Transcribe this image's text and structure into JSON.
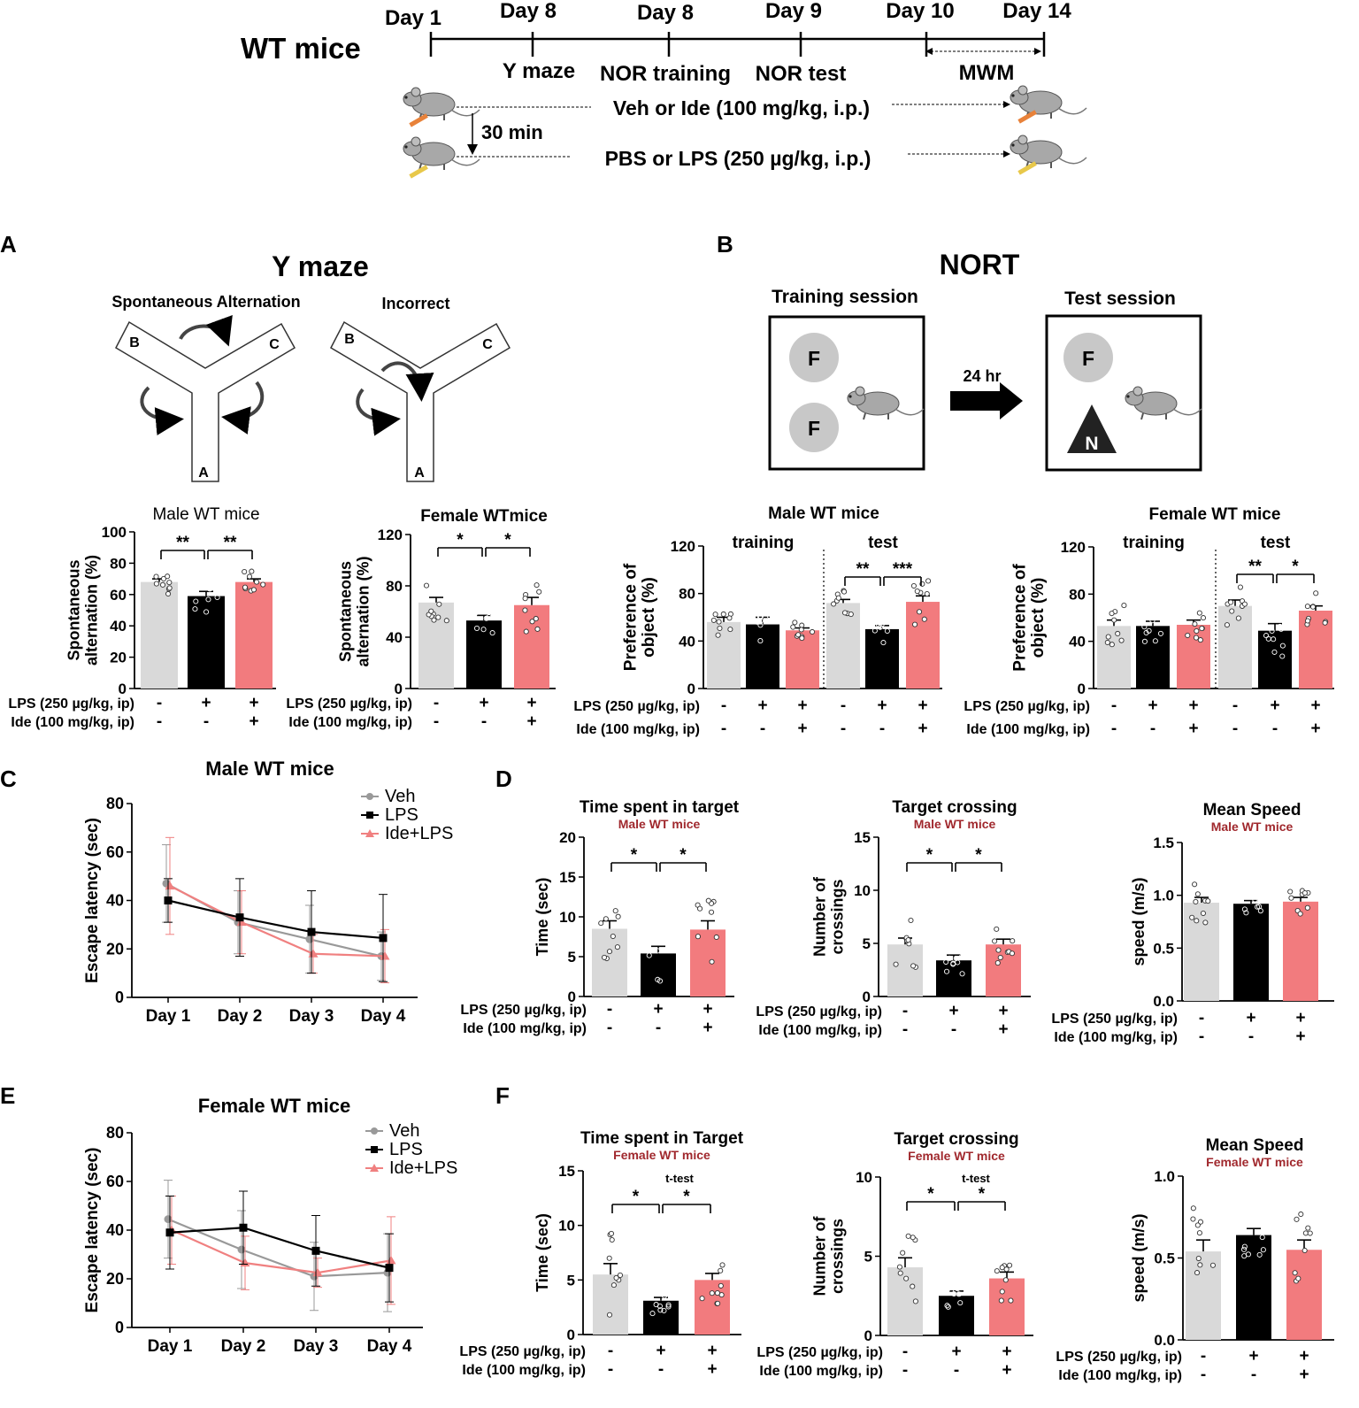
{
  "header": {
    "title": "WT mice",
    "days": [
      "Day 1",
      "Day 8",
      "Day 8",
      "Day 9",
      "Day 10",
      "Day 14"
    ],
    "tests": [
      "Y maze",
      "NOR training",
      "NOR test",
      "MWM"
    ],
    "treatment1": "Veh or Ide (100 mg/kg, i.p.)",
    "interval": "30 min",
    "treatment2": "PBS or LPS (250 µg/kg, i.p.)"
  },
  "panelA": {
    "letter": "A",
    "title": "Y maze",
    "maze1_label": "Spontaneous Alternation",
    "maze2_label": "Incorrect",
    "arms": [
      "A",
      "B",
      "C"
    ]
  },
  "panelB": {
    "letter": "B",
    "title": "NORT",
    "training_label": "Training session",
    "test_label": "Test session",
    "delay": "24 hr",
    "obj_familiar": "F",
    "obj_novel": "N"
  },
  "panelC": {
    "letter": "C"
  },
  "panelD": {
    "letter": "D"
  },
  "panelE": {
    "letter": "E"
  },
  "panelF": {
    "letter": "F"
  },
  "colors": {
    "veh": "#d9d9d9",
    "lps": "#000000",
    "ide": "#f27b7e",
    "subtitle": "#a0282d"
  },
  "treatment_rows": {
    "lps_label": "LPS (250 µg/kg, ip)",
    "ide_label": "Ide (100 mg/kg, ip)",
    "lps_signs": [
      "-",
      "+",
      "+"
    ],
    "ide_signs": [
      "-",
      "-",
      "+"
    ]
  },
  "chart_data": [
    {
      "id": "ymaze_male",
      "type": "bar",
      "title": "Male WT mice",
      "ylabel": "Spontaneous alternation (%)",
      "ylim": [
        0,
        100
      ],
      "yticks": [
        0,
        20,
        40,
        60,
        80,
        100
      ],
      "categories": [
        "Veh",
        "LPS",
        "Ide+LPS"
      ],
      "values": [
        68,
        59,
        68
      ],
      "sem": [
        2,
        3,
        2
      ],
      "significance": [
        "**",
        "**"
      ]
    },
    {
      "id": "ymaze_female",
      "type": "bar",
      "title": "Female WTmice",
      "ylabel": "Spontaneous alternation (%)",
      "ylim": [
        0,
        120
      ],
      "yticks": [
        0,
        40,
        80,
        120
      ],
      "categories": [
        "Veh",
        "LPS",
        "Ide+LPS"
      ],
      "values": [
        67,
        53,
        65
      ],
      "sem": [
        4,
        4,
        6
      ],
      "significance": [
        "*",
        "*"
      ]
    },
    {
      "id": "nort_male",
      "type": "bar",
      "title": "Male WT mice",
      "ylabel": "Preference of object (%)",
      "ylim": [
        0,
        120
      ],
      "yticks": [
        0,
        40,
        80,
        120
      ],
      "groups": [
        "training",
        "test"
      ],
      "categories": [
        "Veh",
        "LPS",
        "Ide+LPS"
      ],
      "series": [
        {
          "name": "training",
          "values": [
            56,
            54,
            49
          ],
          "sem": [
            4,
            6,
            2
          ]
        },
        {
          "name": "test",
          "values": [
            72,
            50,
            73
          ],
          "sem": [
            3,
            3,
            5
          ]
        }
      ],
      "significance": [
        "**",
        "***"
      ]
    },
    {
      "id": "nort_female",
      "type": "bar",
      "title": "Female WT mice",
      "ylabel": "Preference of object (%)",
      "ylim": [
        0,
        120
      ],
      "yticks": [
        0,
        40,
        80,
        120
      ],
      "groups": [
        "training",
        "test"
      ],
      "categories": [
        "Veh",
        "LPS",
        "Ide+LPS"
      ],
      "series": [
        {
          "name": "training",
          "values": [
            53,
            53,
            54
          ],
          "sem": [
            5,
            4,
            4
          ]
        },
        {
          "name": "test",
          "values": [
            70,
            49,
            66
          ],
          "sem": [
            5,
            6,
            4
          ]
        }
      ],
      "significance": [
        "**",
        "*"
      ]
    },
    {
      "id": "mwm_latency_male",
      "type": "line",
      "title": "Male WT mice",
      "ylabel": "Escape latency (sec)",
      "ylim": [
        0,
        80
      ],
      "yticks": [
        0,
        20,
        40,
        60,
        80
      ],
      "x": [
        "Day 1",
        "Day 2",
        "Day 3",
        "Day 4"
      ],
      "series": [
        {
          "name": "Veh",
          "values": [
            47,
            31,
            24,
            17
          ],
          "err": [
            16,
            13,
            14,
            10
          ]
        },
        {
          "name": "LPS",
          "values": [
            40,
            33,
            27,
            24.5
          ],
          "err": [
            9,
            16,
            17,
            18
          ]
        },
        {
          "name": "Ide+LPS",
          "values": [
            46,
            31,
            18,
            17
          ],
          "err": [
            20,
            13,
            8,
            11
          ]
        }
      ]
    },
    {
      "id": "mwm_latency_female",
      "type": "line",
      "title": "Female WT mice",
      "ylabel": "Escape latency (sec)",
      "ylim": [
        0,
        80
      ],
      "yticks": [
        0,
        20,
        40,
        60,
        80
      ],
      "x": [
        "Day 1",
        "Day 2",
        "Day 3",
        "Day 4"
      ],
      "series": [
        {
          "name": "Veh",
          "values": [
            44.5,
            32,
            21,
            22.5
          ],
          "err": [
            16,
            16,
            14,
            16
          ]
        },
        {
          "name": "LPS",
          "values": [
            39,
            41,
            31.5,
            24.5
          ],
          "err": [
            15,
            15,
            14.5,
            14
          ]
        },
        {
          "name": "Ide+LPS",
          "values": [
            40,
            26.5,
            22.5,
            27.5
          ],
          "err": [
            14,
            11,
            6,
            18
          ]
        }
      ]
    },
    {
      "id": "time_target_male",
      "type": "bar",
      "title": "Time spent in target",
      "subtitle": "Male WT mice",
      "ylabel": "Time (sec)",
      "ylim": [
        0,
        20
      ],
      "yticks": [
        0,
        5,
        10,
        15,
        20
      ],
      "categories": [
        "Veh",
        "LPS",
        "Ide+LPS"
      ],
      "values": [
        8.5,
        5.4,
        8.4
      ],
      "sem": [
        1.0,
        0.9,
        1.1
      ],
      "significance": [
        "*",
        "*"
      ]
    },
    {
      "id": "target_crossing_male",
      "type": "bar",
      "title": "Target crossing",
      "subtitle": "Male WT mice",
      "ylabel": "Number of crossings",
      "ylim": [
        0,
        15
      ],
      "yticks": [
        0,
        5,
        10,
        15
      ],
      "categories": [
        "Veh",
        "LPS",
        "Ide+LPS"
      ],
      "values": [
        4.9,
        3.4,
        4.9
      ],
      "sem": [
        0.6,
        0.5,
        0.5
      ],
      "significance": [
        "*",
        "*"
      ]
    },
    {
      "id": "mean_speed_male",
      "type": "bar",
      "title": "Mean Speed",
      "subtitle": "Male WT mice",
      "ylabel": "speed (m/s)",
      "ylim": [
        0,
        1.5
      ],
      "yticks": [
        "0.0",
        "0.5",
        "1.0",
        "1.5"
      ],
      "categories": [
        "Veh",
        "LPS",
        "Ide+LPS"
      ],
      "values": [
        0.93,
        0.92,
        0.94
      ],
      "sem": [
        0.05,
        0.03,
        0.04
      ]
    },
    {
      "id": "time_target_female",
      "type": "bar",
      "title": "Time spent in Target",
      "subtitle": "Female WT mice",
      "note": "t-test",
      "ylabel": "Time (sec)",
      "ylim": [
        0,
        15
      ],
      "yticks": [
        0,
        5,
        10,
        15
      ],
      "categories": [
        "Veh",
        "LPS",
        "Ide+LPS"
      ],
      "values": [
        5.5,
        3.1,
        5.0
      ],
      "sem": [
        1.0,
        0.3,
        0.6
      ],
      "significance": [
        "*",
        "*"
      ]
    },
    {
      "id": "target_crossing_female",
      "type": "bar",
      "title": "Target crossing",
      "subtitle": "Female WT mice",
      "note": "t-test",
      "ylabel": "Number of crossings",
      "ylim": [
        0,
        10
      ],
      "yticks": [
        0,
        5,
        10
      ],
      "categories": [
        "Veh",
        "LPS",
        "Ide+LPS"
      ],
      "values": [
        4.3,
        2.5,
        3.6
      ],
      "sem": [
        0.6,
        0.3,
        0.4
      ],
      "significance": [
        "*",
        "*"
      ]
    },
    {
      "id": "mean_speed_female",
      "type": "bar",
      "title": "Mean Speed",
      "subtitle": "Female WT mice",
      "ylabel": "speed (m/s)",
      "ylim": [
        0,
        1.0
      ],
      "yticks": [
        "0.0",
        "0.5",
        "1.0"
      ],
      "categories": [
        "Veh",
        "LPS",
        "Ide+LPS"
      ],
      "values": [
        0.54,
        0.64,
        0.55
      ],
      "sem": [
        0.07,
        0.04,
        0.06
      ]
    }
  ]
}
